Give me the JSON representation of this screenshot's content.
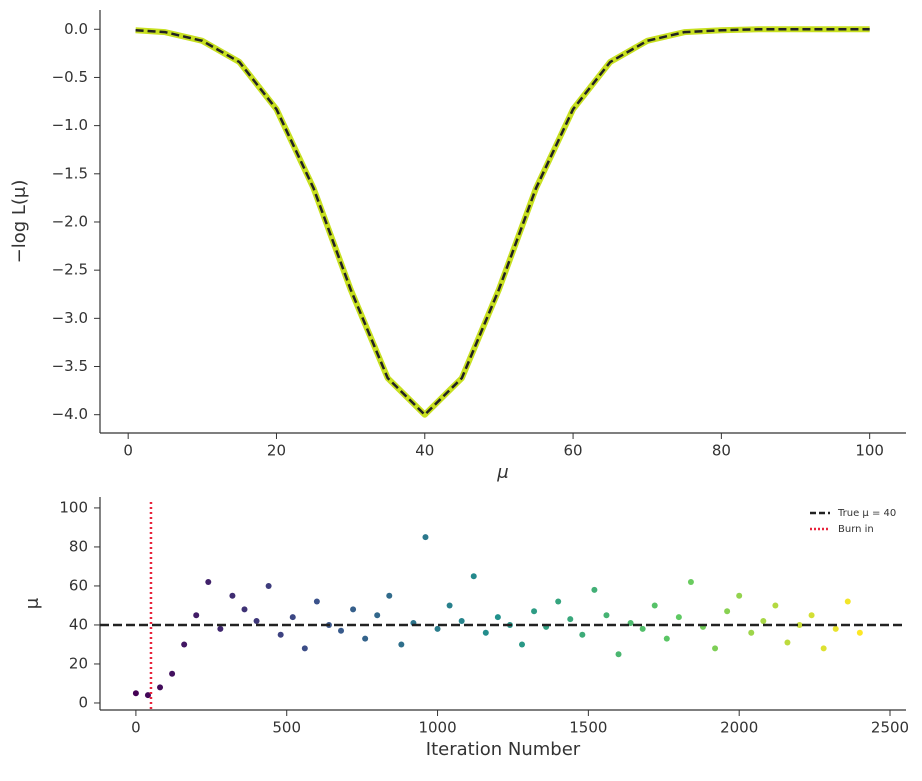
{
  "chart_data": [
    {
      "type": "line",
      "xlabel": "μ",
      "ylabel": "−log L(μ)",
      "x": [
        1,
        5,
        10,
        15,
        20,
        25,
        30,
        35,
        40,
        45,
        50,
        55,
        60,
        65,
        70,
        75,
        80,
        85,
        90,
        95,
        100
      ],
      "values": [
        -0.01,
        -0.03,
        -0.12,
        -0.34,
        -0.83,
        -1.65,
        -2.7,
        -3.62,
        -4.0,
        -3.62,
        -2.7,
        -1.65,
        -0.83,
        -0.34,
        -0.12,
        -0.03,
        -0.01,
        0,
        0,
        0,
        0
      ],
      "color": "#c8e020",
      "line_color": "#222222",
      "xlim": [
        -3.8,
        104.9
      ],
      "ylim": [
        -4.19,
        0.2
      ],
      "xticks": [
        0,
        20,
        40,
        60,
        80,
        100
      ],
      "yticks": [
        {
          "value": 0,
          "label": "0.0"
        },
        {
          "value": -0.5,
          "label": "−0.5"
        },
        {
          "value": -1,
          "label": "−1.0"
        },
        {
          "value": -1.5,
          "label": "−1.5"
        },
        {
          "value": -2,
          "label": "−2.0"
        },
        {
          "value": -2.5,
          "label": "−2.5"
        },
        {
          "value": -3,
          "label": "−3.0"
        },
        {
          "value": -3.5,
          "label": "−3.5"
        },
        {
          "value": -4,
          "label": "−4.0"
        }
      ]
    },
    {
      "type": "scatter",
      "xlabel": "Iteration Number",
      "ylabel": "μ",
      "x": [
        0,
        40,
        80,
        120,
        160,
        200,
        240,
        280,
        320,
        360,
        400,
        440,
        480,
        520,
        560,
        600,
        640,
        680,
        720,
        760,
        800,
        840,
        880,
        920,
        960,
        1000,
        1040,
        1080,
        1120,
        1160,
        1200,
        1240,
        1280,
        1320,
        1360,
        1400,
        1440,
        1480,
        1520,
        1560,
        1600,
        1640,
        1680,
        1720,
        1760,
        1800,
        1840,
        1880,
        1920,
        1960,
        2000,
        2040,
        2080,
        2120,
        2160,
        2200,
        2240,
        2280,
        2320,
        2360,
        2400
      ],
      "series": [
        {
          "values": [
            5,
            4,
            8,
            15,
            30,
            45,
            62,
            38,
            55,
            48,
            42,
            60,
            35,
            44,
            28,
            52,
            40,
            37,
            48,
            33,
            45,
            55,
            30,
            41,
            85,
            38,
            50,
            42,
            65,
            36,
            44,
            40,
            30,
            47,
            39,
            52,
            43,
            35,
            58,
            45,
            25,
            41,
            38,
            50,
            33,
            44,
            62,
            39,
            28,
            47,
            55,
            36,
            42,
            50,
            31,
            40,
            45,
            28,
            38,
            52,
            36
          ]
        }
      ],
      "colormap": "viridis",
      "colormap_colors": [
        "#440154",
        "#3b528b",
        "#21918c",
        "#5ec962",
        "#fde725"
      ],
      "hlines": [
        {
          "name": "True μ = 40",
          "value": 40,
          "color": "#222222"
        }
      ],
      "vlines": [
        {
          "name": "Burn in",
          "value": 50,
          "color": "#e8243c"
        }
      ],
      "xlim": [
        -119,
        2553
      ],
      "ylim": [
        -3.6,
        105.6
      ],
      "xticks": [
        0,
        500,
        1000,
        1500,
        2000,
        2500
      ],
      "yticks": [
        0,
        20,
        40,
        60,
        80,
        100
      ]
    }
  ]
}
